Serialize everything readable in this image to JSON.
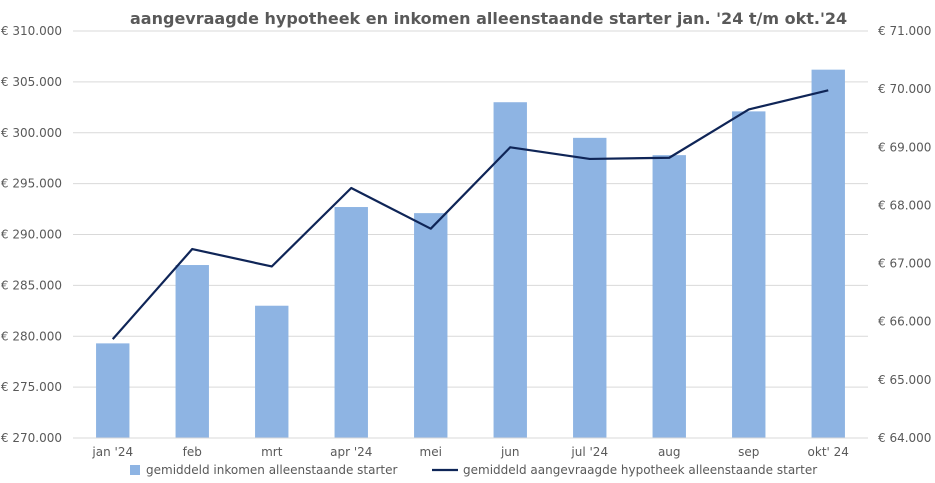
{
  "chart_data": {
    "type": "bar",
    "title": "aangevraagde hypotheek en inkomen alleenstaande starter jan. '24 t/m okt.'24",
    "categories": [
      "jan '24",
      "feb",
      "mrt",
      "apr '24",
      "mei",
      "jun",
      "jul '24",
      "aug",
      "sep",
      "okt' 24"
    ],
    "y_left": {
      "ylim": [
        270000,
        310000
      ],
      "ticks": [
        270000,
        275000,
        280000,
        285000,
        290000,
        295000,
        300000,
        305000,
        310000
      ],
      "tick_labels": [
        "€ 270.000",
        "€ 275.000",
        "€ 280.000",
        "€ 285.000",
        "€ 290.000",
        "€ 295.000",
        "€ 300.000",
        "€ 305.000",
        "€ 310.000"
      ]
    },
    "y_right": {
      "ylim": [
        64000,
        71000
      ],
      "ticks": [
        64000,
        65000,
        66000,
        67000,
        68000,
        69000,
        70000,
        71000
      ],
      "tick_labels": [
        "€ 64.000",
        "€ 65.000",
        "€ 66.000",
        "€ 67.000",
        "€ 68.000",
        "€ 69.000",
        "€ 70.000",
        "€ 71.000"
      ]
    },
    "series": [
      {
        "name": "gemiddeld inkomen alleenstaande starter",
        "kind": "bar",
        "axis": "left",
        "color": "#8EB4E3",
        "values": [
          279300,
          287000,
          283000,
          292700,
          292100,
          303000,
          299500,
          297800,
          302100,
          306200
        ]
      },
      {
        "name": "gemiddeld aangevraagde hypotheek alleenstaande starter",
        "kind": "line",
        "axis": "right",
        "color": "#0F2557",
        "values": [
          65700,
          67250,
          66950,
          68300,
          67600,
          69000,
          68800,
          68820,
          69650,
          69980
        ]
      }
    ],
    "grid": true,
    "legend_position": "bottom"
  }
}
